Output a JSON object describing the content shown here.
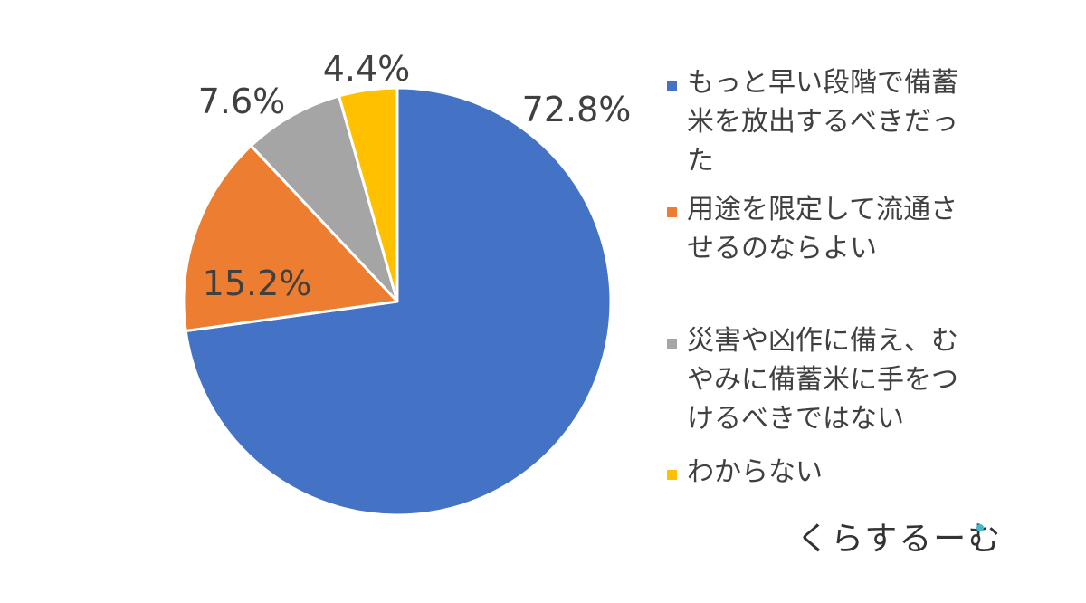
{
  "chart_data": {
    "type": "pie",
    "categories": [
      "もっと早い段階で備蓄米を放出するべきだった",
      "用途を限定して流通させるのならよい",
      "災害や凶作に備え、むやみに備蓄米に手をつけるべきではない",
      "わからない"
    ],
    "values": [
      72.8,
      15.2,
      7.6,
      4.4
    ],
    "value_labels": [
      "72.8%",
      "15.2%",
      "7.6%",
      "4.4%"
    ],
    "colors": [
      "#4472C4",
      "#ED7D31",
      "#A5A5A5",
      "#FFC000"
    ],
    "start_angle_deg": 0,
    "direction": "clockwise",
    "legend_position": "right",
    "legend": [
      {
        "line1": "もっと早い段階で備蓄",
        "line2": "米を放出するべきだっ",
        "line3": "た"
      },
      {
        "line1": "用途を限定して流通さ",
        "line2": "せるのならよい"
      },
      {
        "line1": "災害や凶作に備え、む",
        "line2": "やみに備蓄米に手をつ",
        "line3": "けるべきではない"
      },
      {
        "line1": "わからない"
      }
    ]
  },
  "logo": {
    "text": "くらするーむ",
    "dot_color": "#3FB8C8"
  }
}
